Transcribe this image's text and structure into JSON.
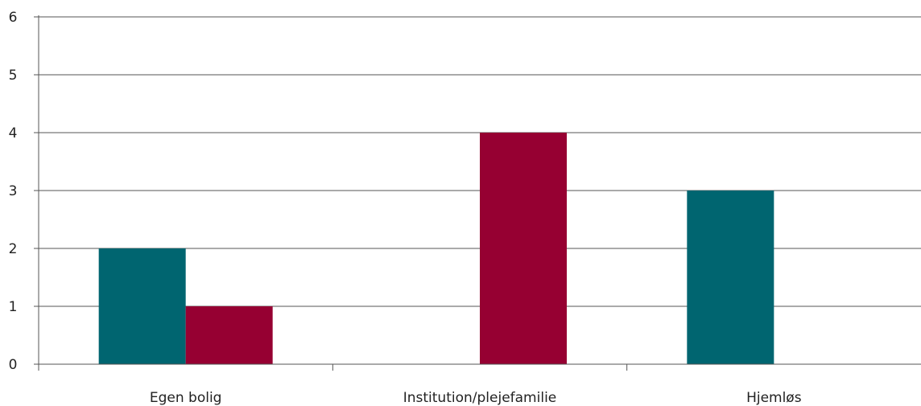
{
  "chart_data": {
    "type": "bar",
    "categories": [
      "Egen bolig",
      "Institution/plejefamilie",
      "Hjemløs"
    ],
    "series": [
      {
        "values": [
          2,
          0,
          3
        ],
        "color": "#006570"
      },
      {
        "values": [
          1,
          4,
          0
        ],
        "color": "#960032"
      }
    ],
    "ylim": [
      0,
      6
    ],
    "yticks": [
      "0",
      "1",
      "2",
      "3",
      "4",
      "5",
      "6"
    ],
    "grid": true,
    "legend": "none"
  }
}
